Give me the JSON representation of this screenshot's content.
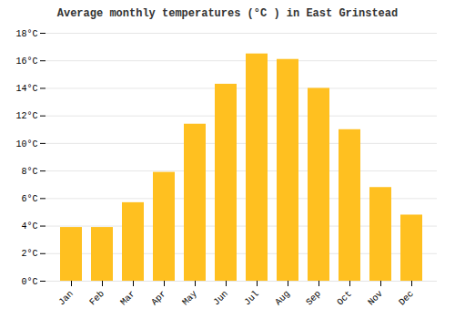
{
  "chart_data": {
    "type": "bar",
    "title": "Average monthly temperatures (°C ) in East Grinstead",
    "categories": [
      "Jan",
      "Feb",
      "Mar",
      "Apr",
      "May",
      "Jun",
      "Jul",
      "Aug",
      "Sep",
      "Oct",
      "Nov",
      "Dec"
    ],
    "values": [
      3.9,
      3.9,
      5.7,
      7.9,
      11.4,
      14.3,
      16.5,
      16.1,
      14.0,
      11.0,
      6.8,
      4.8
    ],
    "color": "#FFC020",
    "ylim": [
      0,
      18
    ],
    "yticks": [
      {
        "value": 0,
        "label": "0°C"
      },
      {
        "value": 2,
        "label": "2°C"
      },
      {
        "value": 4,
        "label": "4°C"
      },
      {
        "value": 6,
        "label": "6°C"
      },
      {
        "value": 8,
        "label": "8°C"
      },
      {
        "value": 10,
        "label": "10°C"
      },
      {
        "value": 12,
        "label": "12°C"
      },
      {
        "value": 14,
        "label": "14°C"
      },
      {
        "value": 16,
        "label": "16°C"
      },
      {
        "value": 18,
        "label": "18°C"
      }
    ],
    "grid": true
  }
}
